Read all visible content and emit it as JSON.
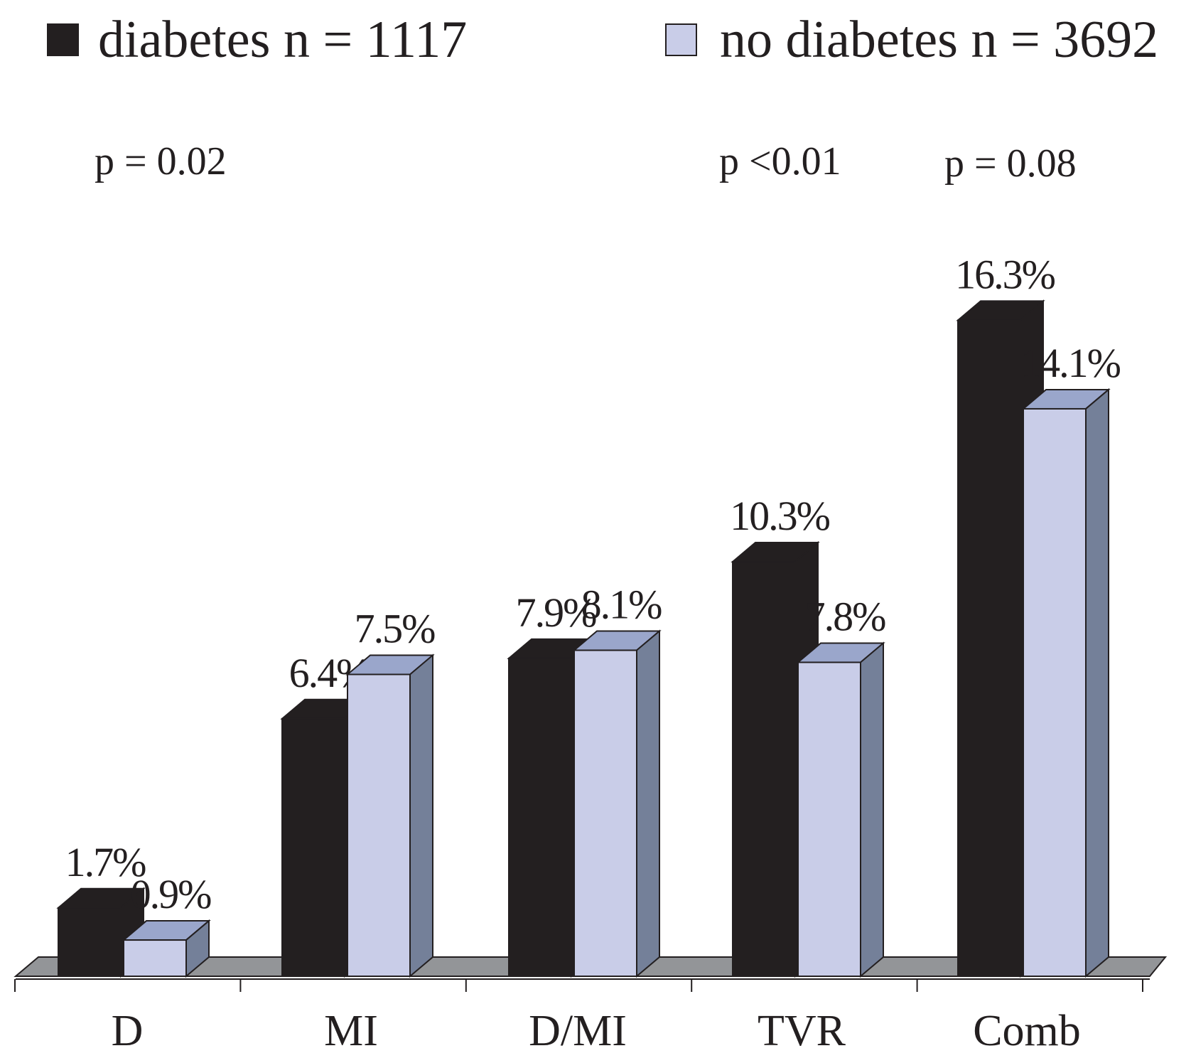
{
  "chart_data": {
    "type": "bar",
    "style": "3d-grouped",
    "categories": [
      "D",
      "MI",
      "D/MI",
      "TVR",
      "Comb"
    ],
    "series": [
      {
        "name": "diabetes n = 1117",
        "color": "#231f20",
        "values": [
          1.7,
          6.4,
          7.9,
          10.3,
          16.3
        ],
        "labels": [
          "1.7%",
          "6.4%",
          "7.9%",
          "10.3%",
          "16.3%"
        ]
      },
      {
        "name": "no diabetes n = 3692",
        "color": "#c9cde8",
        "values": [
          0.9,
          7.5,
          8.1,
          7.8,
          14.1
        ],
        "labels": [
          "0.9%",
          "7.5%",
          "8.1%",
          "7.8%",
          "14.1%"
        ]
      }
    ],
    "annotations": [
      {
        "text": "p = 0.02",
        "category": "D"
      },
      {
        "text": "p <0.01",
        "category": "TVR"
      },
      {
        "text": "p = 0.08",
        "category": "Comb"
      }
    ],
    "legend_position": "top",
    "xlabel": "",
    "ylabel": "",
    "ylim": [
      0,
      17
    ],
    "grid": false,
    "colors": {
      "top": "#9aa6cb",
      "side": "#748099",
      "floor": "#939598"
    }
  }
}
